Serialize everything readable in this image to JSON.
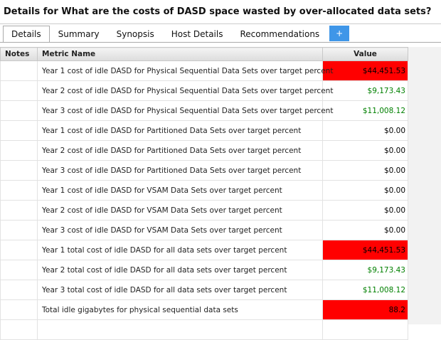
{
  "header": {
    "title": "Details for What are the costs of DASD space wasted by over-allocated data sets?"
  },
  "tabs": [
    "Details",
    "Summary",
    "Synopsis",
    "Host Details",
    "Recommendations"
  ],
  "add_tab": "+",
  "table": {
    "columns": [
      "Notes",
      "Metric Name",
      "Value"
    ],
    "rows": [
      {
        "metric": "Year 1 cost of idle DASD for Physical Sequential Data Sets over target percent",
        "value": "$44,451.53",
        "color": "#000000",
        "background": "#ff0000"
      },
      {
        "metric": "Year 2 cost of idle DASD for Physical Sequential Data Sets over target percent",
        "value": "$9,173.43",
        "color": "#008000"
      },
      {
        "metric": "Year 3 cost of idle DASD for Physical Sequential Data Sets over target percent",
        "value": "$11,008.12",
        "color": "#008000"
      },
      {
        "metric": "Year 1 cost of idle DASD for Partitioned Data Sets over target percent",
        "value": "$0.00",
        "color": "#000000"
      },
      {
        "metric": "Year 2 cost of idle DASD for Partitioned Data Sets over target percent",
        "value": "$0.00",
        "color": "#000000"
      },
      {
        "metric": "Year 3 cost of idle DASD for Partitioned Data Sets over target percent",
        "value": "$0.00",
        "color": "#000000"
      },
      {
        "metric": "Year 1 cost of idle DASD for VSAM Data Sets over target percent",
        "value": "$0.00",
        "color": "#000000"
      },
      {
        "metric": "Year 2 cost of idle DASD for VSAM Data Sets over target percent",
        "value": "$0.00",
        "color": "#000000"
      },
      {
        "metric": "Year 3 cost of idle DASD for VSAM Data Sets over target percent",
        "value": "$0.00",
        "color": "#000000"
      },
      {
        "metric": "Year 1 total cost of idle DASD for all data sets over target percent",
        "value": "$44,451.53",
        "color": "#000000",
        "background": "#ff0000"
      },
      {
        "metric": "Year 2 total cost of idle DASD for all data sets over target percent",
        "value": "$9,173.43",
        "color": "#008000"
      },
      {
        "metric": "Year 3 total cost of idle DASD for all data sets over target percent",
        "value": "$11,008.12",
        "color": "#008000"
      },
      {
        "metric": "Total idle gigabytes for physical sequential data sets",
        "value": "88.2",
        "color": "#000000",
        "background": "#ff0000"
      }
    ]
  }
}
